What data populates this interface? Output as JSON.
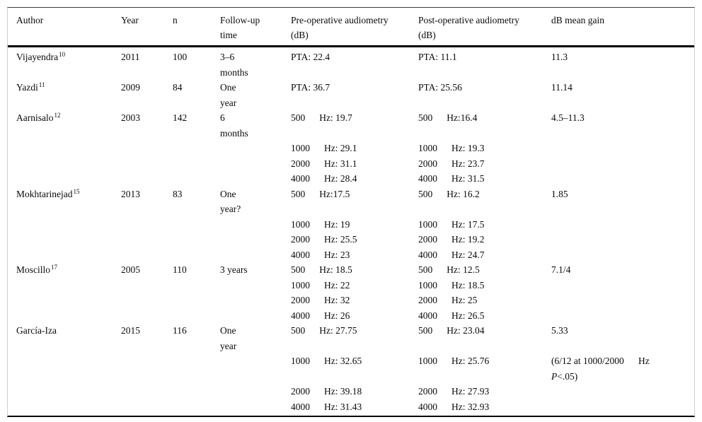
{
  "header": {
    "author": "Author",
    "year": "Year",
    "n": "n",
    "followup": [
      "Follow-up",
      "time"
    ],
    "pre": [
      "Pre-operative audiometry",
      "(dB)"
    ],
    "post": [
      "Post-operative audiometry",
      "(dB)"
    ],
    "gain": [
      "dB mean gain"
    ]
  },
  "studies": [
    {
      "author": "Vijayendra",
      "sup": "10",
      "year": "2011",
      "n": "100",
      "lines": [
        {
          "fu": "3–6",
          "pre": [
            "",
            "PTA: 22.4"
          ],
          "post": [
            "",
            "PTA: 11.1"
          ],
          "gain": "11.3"
        },
        {
          "fu": "months"
        }
      ]
    },
    {
      "author": "Yazdi",
      "sup": "11",
      "year": "2009",
      "n": "84",
      "lines": [
        {
          "fu": "One",
          "pre": [
            "",
            "PTA: 36.7"
          ],
          "post": [
            "",
            "PTA: 25.56"
          ],
          "gain": "11.14"
        },
        {
          "fu": "year"
        }
      ]
    },
    {
      "author": "Aarnisalo",
      "sup": "12",
      "year": "2003",
      "n": "142",
      "lines": [
        {
          "fu": "6",
          "pre": [
            "500",
            "Hz: 19.7"
          ],
          "post": [
            "500",
            "Hz:16.4"
          ],
          "gain": "4.5–11.3"
        },
        {
          "fu": "months"
        },
        {
          "pre": [
            "1000",
            "Hz: 29.1"
          ],
          "post": [
            "1000",
            "Hz: 19.3"
          ]
        },
        {
          "pre": [
            "2000",
            "Hz: 31.1"
          ],
          "post": [
            "2000",
            "Hz: 23.7"
          ]
        },
        {
          "pre": [
            "4000",
            "Hz: 28.4"
          ],
          "post": [
            "4000",
            "Hz: 31.5"
          ]
        }
      ]
    },
    {
      "author": "Mokhtarinejad",
      "sup": "15",
      "year": "2013",
      "n": "83",
      "lines": [
        {
          "fu": "One",
          "pre": [
            "500",
            "Hz:17.5"
          ],
          "post": [
            "500",
            "Hz: 16.2"
          ],
          "gain": "1.85"
        },
        {
          "fu": "year?"
        },
        {
          "pre": [
            "1000",
            "Hz: 19"
          ],
          "post": [
            "1000",
            "Hz: 17.5"
          ]
        },
        {
          "pre": [
            "2000",
            "Hz: 25.5"
          ],
          "post": [
            "2000",
            "Hz: 19.2"
          ]
        },
        {
          "pre": [
            "4000",
            "Hz: 23"
          ],
          "post": [
            "4000",
            "Hz: 24.7"
          ]
        }
      ]
    },
    {
      "author": "Moscillo",
      "sup": "17",
      "year": "2005",
      "n": "110",
      "lines": [
        {
          "fu": "3 years",
          "pre": [
            "500",
            "Hz: 18.5"
          ],
          "post": [
            "500",
            "Hz: 12.5"
          ],
          "gain": "7.1/4"
        },
        {
          "pre": [
            "1000",
            "Hz: 22"
          ],
          "post": [
            "1000",
            "Hz: 18.5"
          ]
        },
        {
          "pre": [
            "2000",
            "Hz: 32"
          ],
          "post": [
            "2000",
            "Hz: 25"
          ]
        },
        {
          "pre": [
            "4000",
            "Hz: 26"
          ],
          "post": [
            "4000",
            "Hz: 26.5"
          ]
        }
      ]
    },
    {
      "author": "García-Iza",
      "sup": "",
      "year": "2015",
      "n": "116",
      "lines": [
        {
          "fu": "One",
          "pre": [
            "500",
            "Hz: 27.75"
          ],
          "post": [
            "500",
            "Hz: 23.04"
          ],
          "gain": "5.33"
        },
        {
          "fu": "year"
        },
        {
          "pre": [
            "1000",
            "Hz: 32.65"
          ],
          "post": [
            "1000",
            "Hz: 25.76"
          ],
          "gain": "(6/12 at 1000/2000      Hz"
        },
        {
          "gain": {
            "italic": "P",
            "text": "<.05)"
          }
        },
        {
          "pre": [
            "2000",
            "Hz: 39.18"
          ],
          "post": [
            "2000",
            "Hz: 27.93"
          ]
        },
        {
          "pre": [
            "4000",
            "Hz: 31.43"
          ],
          "post": [
            "4000",
            "Hz: 32.93"
          ]
        }
      ]
    }
  ]
}
